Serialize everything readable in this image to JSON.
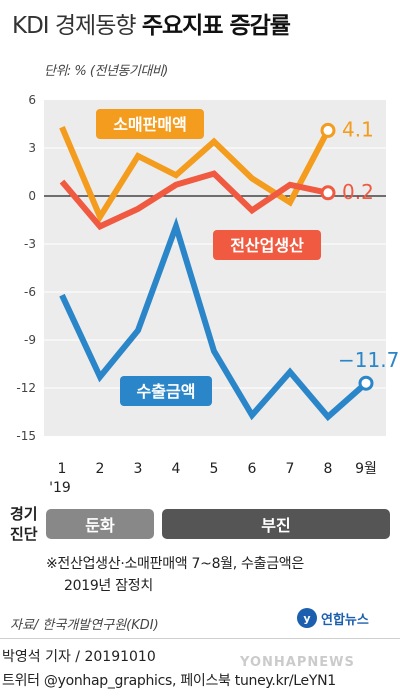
{
  "header": {
    "title_light": "KDI 경제동향",
    "title_bold": "주요지표 증감률",
    "unit": "단위: % (전년동기대비)"
  },
  "chart_data": {
    "type": "line",
    "x": [
      "1",
      "2",
      "3",
      "4",
      "5",
      "6",
      "7",
      "8",
      "9월"
    ],
    "x_sub": "'19",
    "ylim": [
      -15,
      6
    ],
    "yticks": [
      6,
      3,
      0,
      -3,
      -6,
      -9,
      -12,
      -15
    ],
    "series": [
      {
        "name": "소매판매액",
        "color": "#f39c1e",
        "values": [
          4.3,
          -1.3,
          2.5,
          1.3,
          3.4,
          1.1,
          -0.4,
          4.1,
          null
        ],
        "end_label": "4.1"
      },
      {
        "name": "전산업생산",
        "color": "#ef5a40",
        "values": [
          0.9,
          -1.9,
          -0.8,
          0.7,
          1.4,
          -0.9,
          0.7,
          0.2,
          null
        ],
        "end_label": "0.2"
      },
      {
        "name": "수출금액",
        "color": "#2a86c8",
        "values": [
          -6.2,
          -11.3,
          -8.4,
          -1.9,
          -9.7,
          -13.7,
          -11.0,
          -13.8,
          -11.7
        ],
        "end_label": "−11.7"
      }
    ]
  },
  "diagnosis": {
    "label_line1": "경기",
    "label_line2": "진단",
    "slow": "둔화",
    "weak": "부진"
  },
  "note": {
    "line1": "※전산업생산·소매판매액 7~8월, 수출금액은",
    "line2": "2019년 잠정치"
  },
  "source": "자료/ 한국개발연구원(KDI)",
  "logo": "연합뉴스",
  "credit": "박영석 기자 / 20191010",
  "twitter": "트위터 @yonhap_graphics, 페이스북 tuney.kr/LeYN1",
  "watermark": "YONHAPNEWS"
}
